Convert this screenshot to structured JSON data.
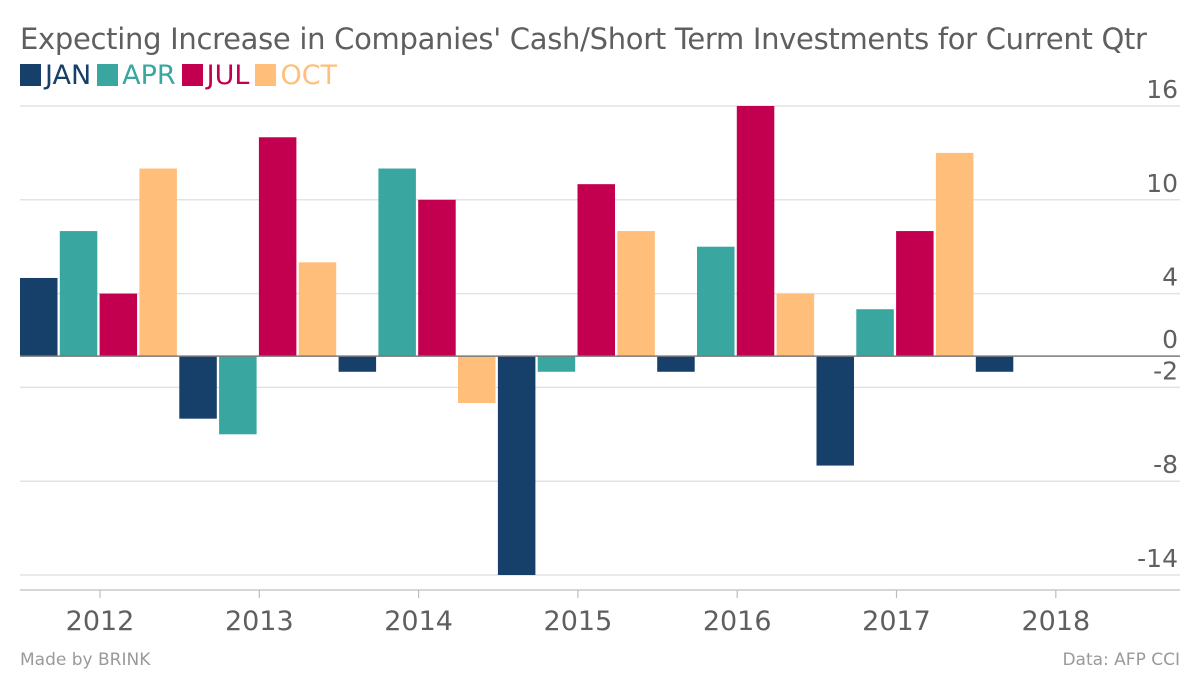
{
  "chart_data": {
    "type": "bar",
    "title": "Expecting Increase in Companies' Cash/Short Term Investments for Current Qtr",
    "categories": [
      "2012",
      "2013",
      "2014",
      "2015",
      "2016",
      "2017",
      "2018"
    ],
    "series": [
      {
        "name": "JAN",
        "color": "#163f69",
        "values": [
          5,
          -4,
          -1,
          -14,
          -1,
          -7,
          -1
        ]
      },
      {
        "name": "APR",
        "color": "#39a6a0",
        "values": [
          8,
          -5,
          12,
          -1,
          7,
          3,
          null
        ]
      },
      {
        "name": "JUL",
        "color": "#c2004f",
        "values": [
          4,
          14,
          10,
          11,
          16,
          8,
          null
        ]
      },
      {
        "name": "OCT",
        "color": "#ffbe7a",
        "values": [
          12,
          6,
          -3,
          8,
          4,
          13,
          null
        ]
      }
    ],
    "y_ticks": [
      16,
      10,
      4,
      0,
      -2,
      -8,
      -14
    ],
    "ylim": [
      -14,
      16
    ],
    "y_axis_side": "right",
    "grid": true,
    "legend_position": "top-left",
    "xlabel": "",
    "ylabel": ""
  },
  "footer": {
    "credit": "Made by BRINK",
    "source": "Data: AFP CCI"
  }
}
